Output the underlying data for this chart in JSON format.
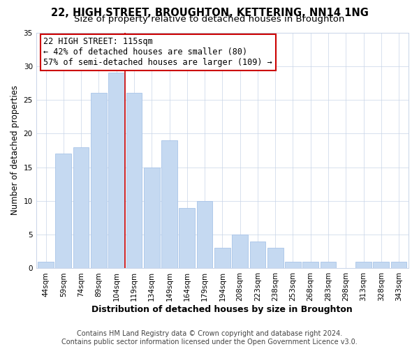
{
  "title": "22, HIGH STREET, BROUGHTON, KETTERING, NN14 1NG",
  "subtitle": "Size of property relative to detached houses in Broughton",
  "xlabel": "Distribution of detached houses by size in Broughton",
  "ylabel": "Number of detached properties",
  "bar_labels": [
    "44sqm",
    "59sqm",
    "74sqm",
    "89sqm",
    "104sqm",
    "119sqm",
    "134sqm",
    "149sqm",
    "164sqm",
    "179sqm",
    "194sqm",
    "208sqm",
    "223sqm",
    "238sqm",
    "253sqm",
    "268sqm",
    "283sqm",
    "298sqm",
    "313sqm",
    "328sqm",
    "343sqm"
  ],
  "bar_values": [
    1,
    17,
    18,
    26,
    29,
    26,
    15,
    19,
    9,
    10,
    3,
    5,
    4,
    3,
    1,
    1,
    1,
    0,
    1,
    1,
    1
  ],
  "bar_color": "#c5d9f1",
  "bar_edgecolor": "#a8c4e8",
  "vline_color": "#cc0000",
  "vline_x_index": 4,
  "ylim": [
    0,
    35
  ],
  "yticks": [
    0,
    5,
    10,
    15,
    20,
    25,
    30,
    35
  ],
  "annotation_title": "22 HIGH STREET: 115sqm",
  "annotation_line1": "← 42% of detached houses are smaller (80)",
  "annotation_line2": "57% of semi-detached houses are larger (109) →",
  "annotation_box_color": "#ffffff",
  "annotation_box_edgecolor": "#cc0000",
  "footer1": "Contains HM Land Registry data © Crown copyright and database right 2024.",
  "footer2": "Contains public sector information licensed under the Open Government Licence v3.0.",
  "background_color": "#ffffff",
  "plot_background": "#ffffff",
  "grid_color": "#c8d4e8",
  "title_fontsize": 10.5,
  "subtitle_fontsize": 9.5,
  "tick_fontsize": 7.5,
  "ylabel_fontsize": 8.5,
  "xlabel_fontsize": 9,
  "footer_fontsize": 7,
  "annotation_fontsize": 8.5
}
